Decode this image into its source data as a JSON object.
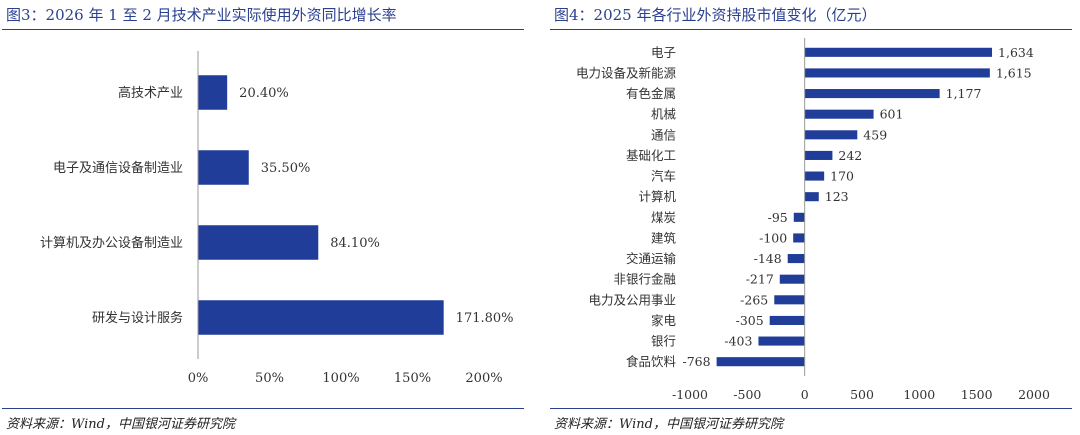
{
  "charts": [
    {
      "panel_title": "图3：2026 年 1 至 2 月技术产业实际使用外资同比增长率",
      "source": "资料来源：Wind，中国银河证券研究院",
      "chart_data": {
        "type": "bar",
        "orientation": "horizontal",
        "categories": [
          "高技术产业",
          "电子及通信设备制造业",
          "计算机及办公设备制造业",
          "研发与设计服务"
        ],
        "values": [
          20.4,
          35.5,
          84.1,
          171.8
        ],
        "data_labels": [
          "20.40%",
          "35.50%",
          "84.10%",
          "171.80%"
        ],
        "xlim": [
          0,
          200
        ],
        "xticks": [
          0,
          50,
          100,
          150,
          200
        ],
        "xtick_labels": [
          "0%",
          "50%",
          "100%",
          "150%",
          "200%"
        ],
        "grid": false,
        "bar_color": "#1f3d99"
      }
    },
    {
      "panel_title": "图4：2025 年各行业外资持股市值变化（亿元）",
      "source": "资料来源：Wind，中国银河证券研究院",
      "chart_data": {
        "type": "bar",
        "orientation": "horizontal",
        "categories": [
          "电子",
          "电力设备及新能源",
          "有色金属",
          "机械",
          "通信",
          "基础化工",
          "汽车",
          "计算机",
          "煤炭",
          "建筑",
          "交通运输",
          "非银行金融",
          "电力及公用事业",
          "家电",
          "银行",
          "食品饮料"
        ],
        "values": [
          1634,
          1615,
          1177,
          601,
          459,
          242,
          170,
          123,
          -95,
          -100,
          -148,
          -217,
          -265,
          -305,
          -403,
          -768
        ],
        "data_labels": [
          "1,634",
          "1,615",
          "1,177",
          "601",
          "459",
          "242",
          "170",
          "123",
          "-95",
          "-100",
          "-148",
          "-217",
          "-265",
          "-305",
          "-403",
          "-768"
        ],
        "xlim": [
          -1000,
          2000
        ],
        "xticks": [
          -1000,
          -500,
          0,
          500,
          1000,
          1500,
          2000
        ],
        "xtick_labels": [
          "-1000",
          "-500",
          "0",
          "500",
          "1000",
          "1500",
          "2000"
        ],
        "grid": false,
        "bar_color": "#1f3d99"
      }
    }
  ]
}
